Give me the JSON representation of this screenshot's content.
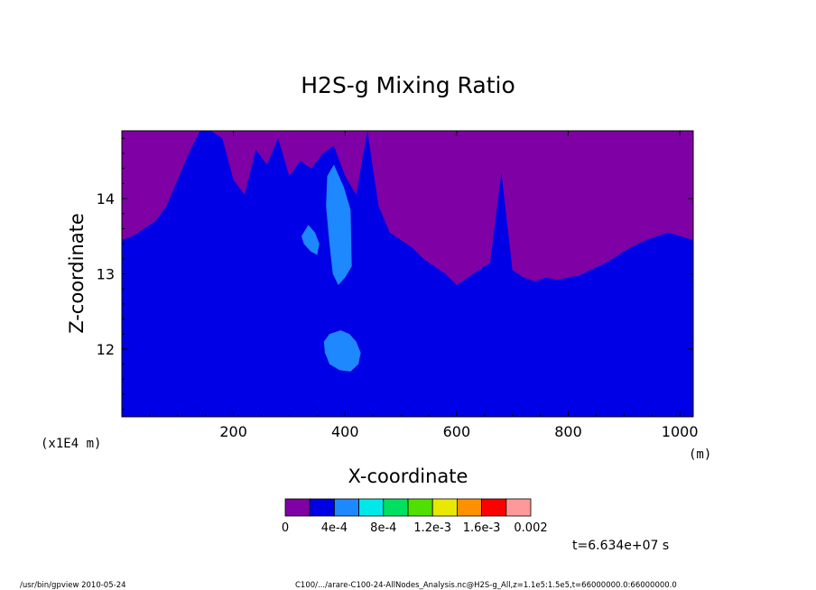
{
  "chart_data": {
    "type": "heatmap",
    "title": "H2S-g Mixing Ratio",
    "xlabel": "X-coordinate",
    "ylabel": "Z-coordinate",
    "x_unit": "(m)",
    "y_unit": "(x1E4 m)",
    "xlim": [
      0,
      1024
    ],
    "ylim": [
      11.1,
      14.9
    ],
    "x_ticks": [
      200,
      400,
      600,
      800,
      1000
    ],
    "y_ticks": [
      12,
      13,
      14
    ],
    "x_tick_labels": [
      "200",
      "400",
      "600",
      "800",
      "1000"
    ],
    "y_tick_labels": [
      "12",
      "13",
      "14"
    ],
    "grid": false,
    "colorbar": {
      "levels": [
        0,
        0.0002,
        0.0004,
        0.0006,
        0.0008,
        0.001,
        0.0012,
        0.0014,
        0.0016,
        0.0018,
        0.002
      ],
      "labels": [
        "0",
        "4e-4",
        "8e-4",
        "1.2e-3",
        "1.6e-3",
        "0.002"
      ],
      "colors": [
        "#7f00a5",
        "#0000e6",
        "#1e88ff",
        "#00e8e8",
        "#00e060",
        "#50e000",
        "#e8e800",
        "#ff9000",
        "#ff0000",
        "#ff9898"
      ]
    },
    "regions": {
      "band_0_2e-4_boundary": {
        "x": [
          0,
          20,
          40,
          60,
          80,
          100,
          120,
          140,
          160,
          180,
          200,
          220,
          240,
          260,
          280,
          300,
          320,
          340,
          360,
          380,
          400,
          420,
          440,
          460,
          480,
          500,
          520,
          540,
          560,
          580,
          600,
          620,
          640,
          660,
          680,
          700,
          720,
          740,
          760,
          780,
          800,
          820,
          840,
          860,
          880,
          900,
          920,
          940,
          960,
          980,
          1000,
          1024
        ],
        "z": [
          13.45,
          13.5,
          13.6,
          13.7,
          13.9,
          14.25,
          14.6,
          14.9,
          14.9,
          14.8,
          14.25,
          14.05,
          14.65,
          14.45,
          14.8,
          14.3,
          14.5,
          14.4,
          14.6,
          14.7,
          14.3,
          14.05,
          14.9,
          13.9,
          13.55,
          13.45,
          13.35,
          13.2,
          13.1,
          13.0,
          12.85,
          12.95,
          13.05,
          13.15,
          14.35,
          13.05,
          12.95,
          12.9,
          12.95,
          12.92,
          12.95,
          12.98,
          13.05,
          13.12,
          13.2,
          13.3,
          13.38,
          13.45,
          13.5,
          13.55,
          13.5,
          13.45
        ]
      },
      "band_2e-4_4e-4_patches": [
        {
          "x": [
            368,
            380,
            398,
            410,
            412,
            400,
            388,
            378,
            372,
            366
          ],
          "z": [
            14.3,
            14.45,
            14.15,
            13.85,
            13.1,
            12.95,
            12.85,
            13.0,
            13.4,
            13.9
          ]
        },
        {
          "x": [
            322,
            334,
            346,
            354,
            350,
            338,
            326
          ],
          "z": [
            13.5,
            13.65,
            13.55,
            13.4,
            13.25,
            13.3,
            13.4
          ]
        },
        {
          "x": [
            362,
            372,
            392,
            408,
            420,
            428,
            424,
            410,
            390,
            372,
            364
          ],
          "z": [
            12.1,
            12.2,
            12.25,
            12.2,
            12.1,
            11.95,
            11.8,
            11.7,
            11.72,
            11.8,
            11.95
          ]
        }
      ]
    }
  },
  "annotations": {
    "time": "t=6.634e+07 s",
    "footer_left": "/usr/bin/gpview   2010-05-24",
    "footer_right": "C100/.../arare-C100-24-AllNodes_Analysis.nc@H2S-g_All,z=1.1e5:1.5e5,t=66000000.0:66000000.0"
  }
}
